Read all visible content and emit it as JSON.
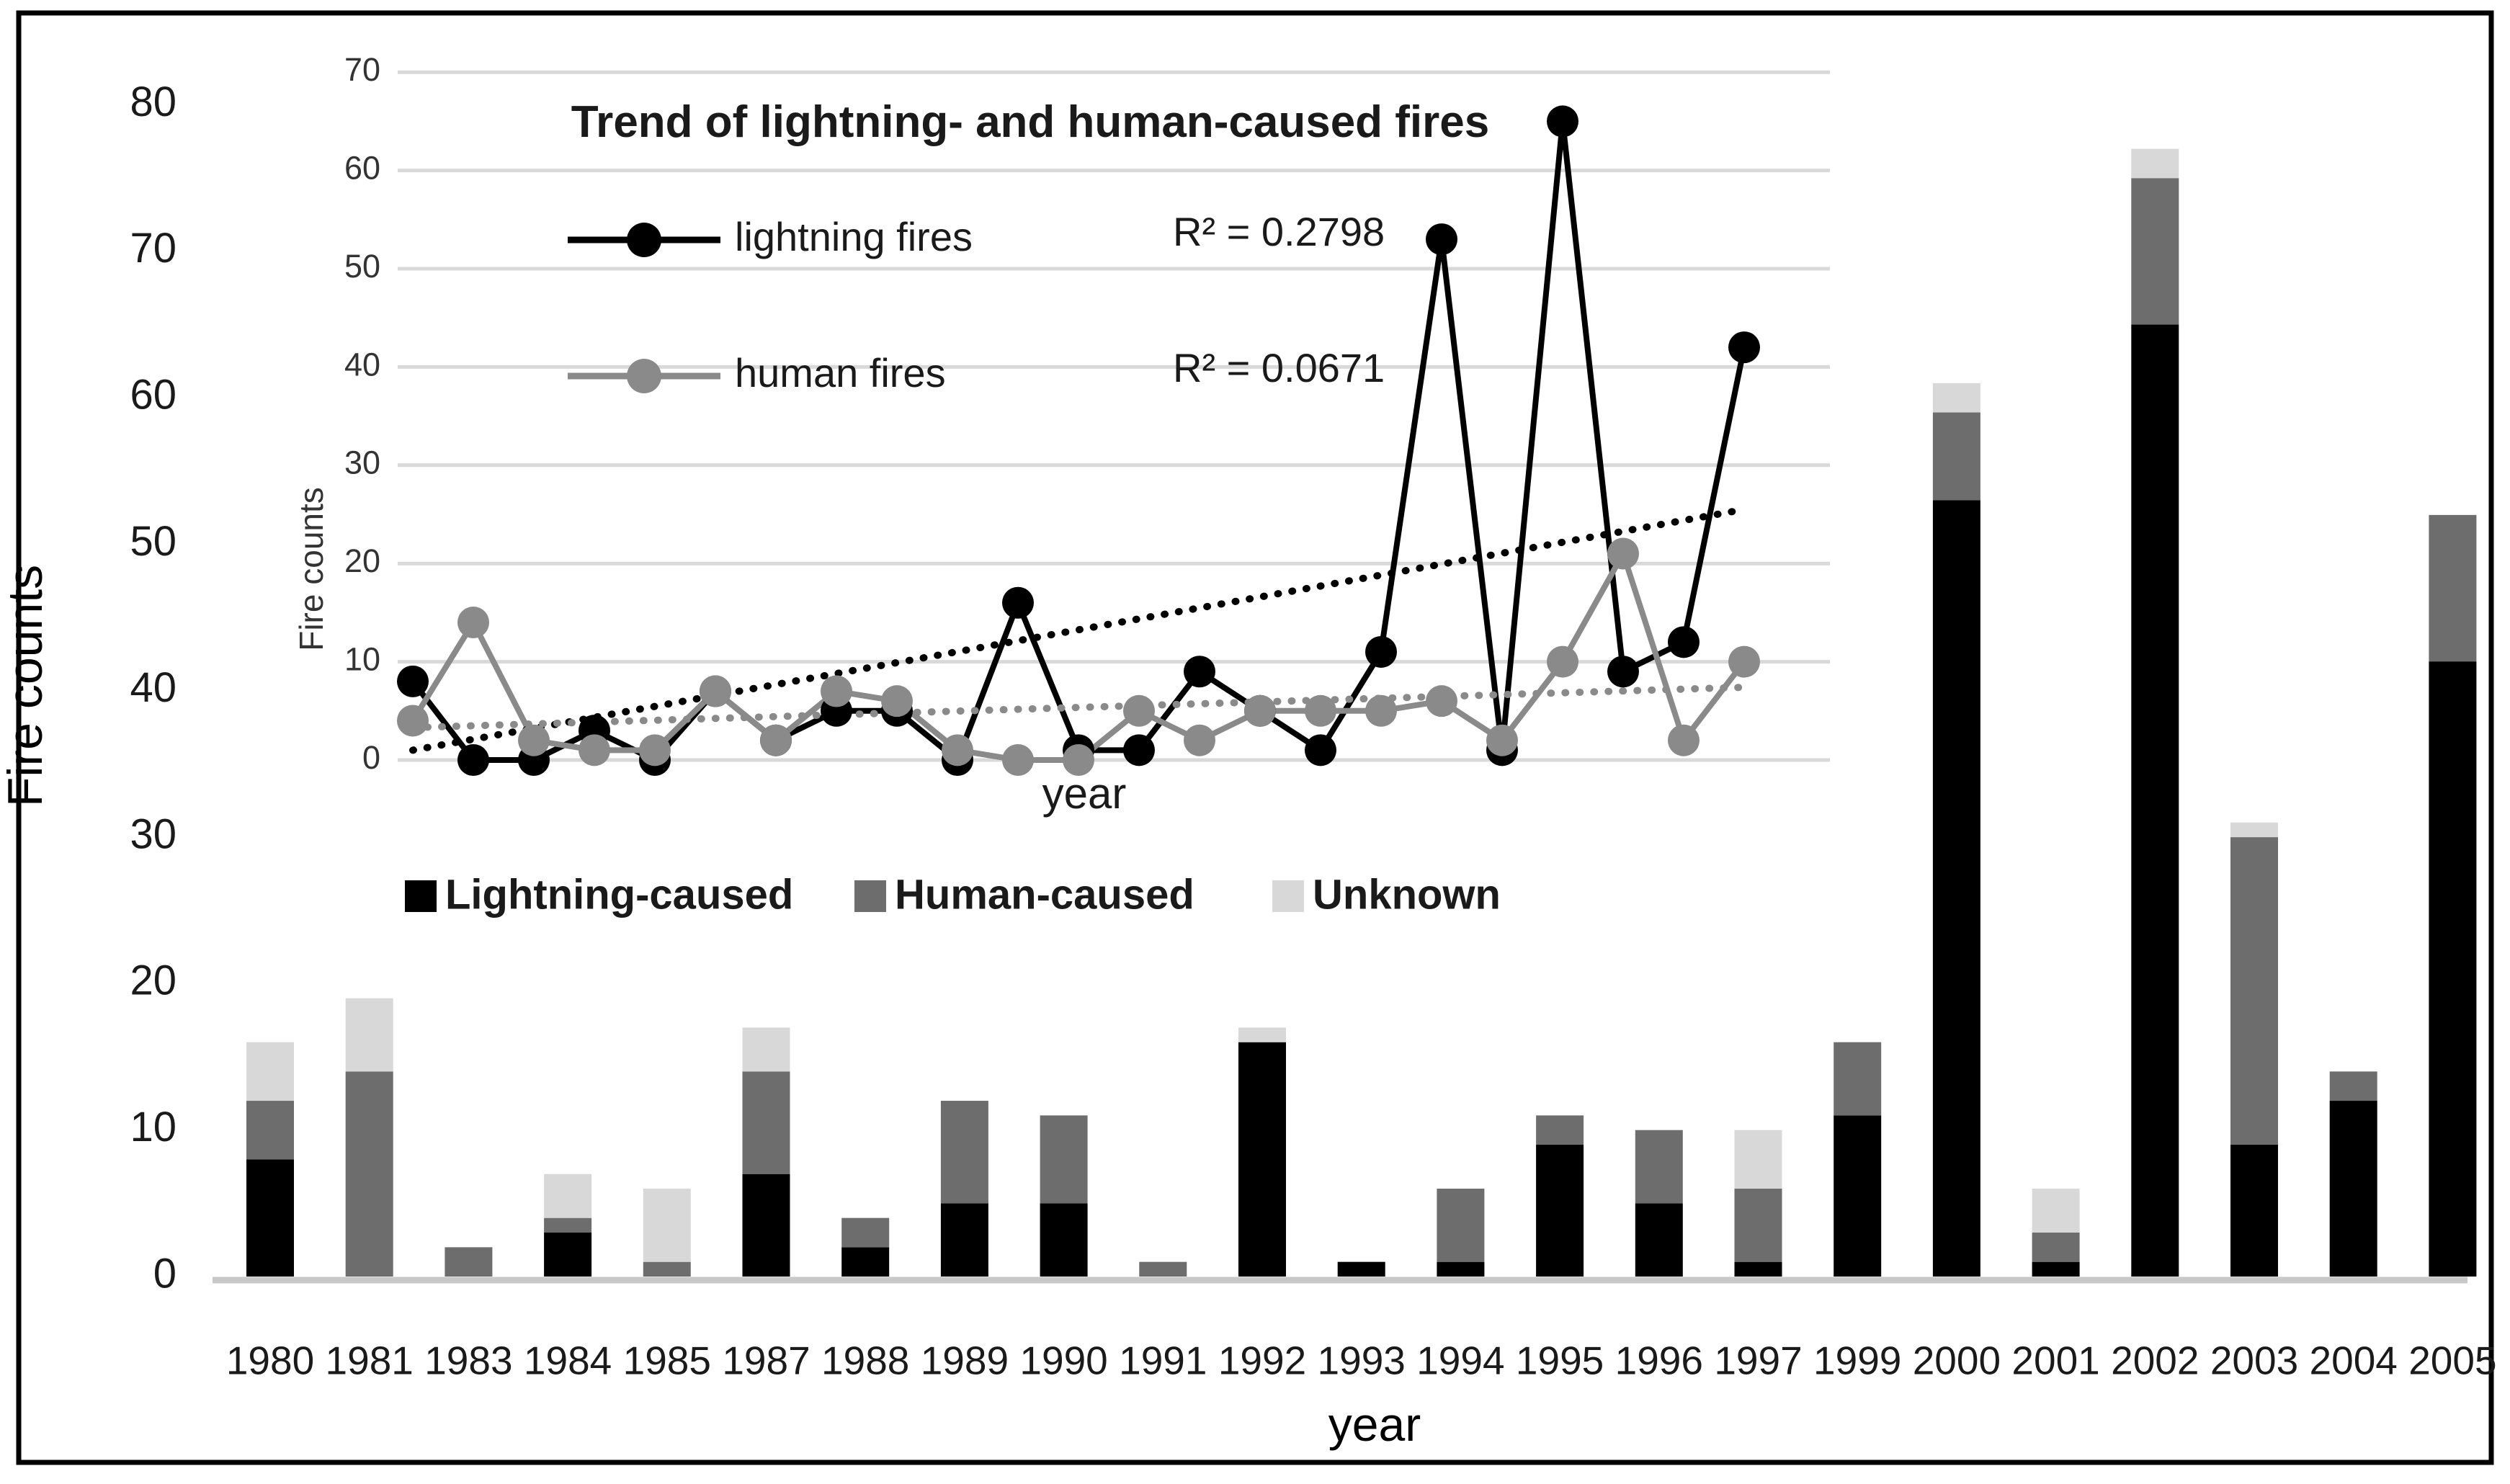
{
  "figure": {
    "border_color": "#000000",
    "background": "#ffffff"
  },
  "chart_data": {
    "type": "combo",
    "main": {
      "type": "stacked-bar",
      "categories": [
        "1980",
        "1981",
        "1983",
        "1984",
        "1985",
        "1987",
        "1988",
        "1989",
        "1990",
        "1991",
        "1992",
        "1993",
        "1994",
        "1995",
        "1996",
        "1997",
        "1999",
        "2000",
        "2001",
        "2002",
        "2003",
        "2004",
        "2005"
      ],
      "series": [
        {
          "name": "Lightning-caused",
          "color": "#000000",
          "values": [
            8,
            0,
            0,
            3,
            0,
            7,
            2,
            5,
            5,
            0,
            16,
            1,
            1,
            9,
            5,
            1,
            11,
            53,
            1,
            65,
            9,
            12,
            42
          ]
        },
        {
          "name": "Human-caused",
          "color": "#6d6d6d",
          "values": [
            4,
            14,
            2,
            1,
            1,
            7,
            2,
            7,
            6,
            1,
            0,
            0,
            5,
            2,
            5,
            5,
            5,
            6,
            2,
            10,
            21,
            2,
            10
          ]
        },
        {
          "name": "Unknown",
          "color": "#d8d8d8",
          "values": [
            4,
            5,
            0,
            3,
            5,
            3,
            0,
            0,
            0,
            0,
            1,
            0,
            0,
            0,
            0,
            4,
            0,
            2,
            3,
            2,
            1,
            0,
            0
          ]
        }
      ],
      "ylabel": "Fire counts",
      "xlabel": "year",
      "ylim": [
        0,
        80
      ],
      "yticks": [
        0,
        10,
        20,
        30,
        40,
        50,
        60,
        70,
        80
      ],
      "grid": false,
      "axis_line_color": "#c8c8c8",
      "tick_color": "#1a1a1a"
    },
    "inset": {
      "type": "line",
      "title": "Trend of lightning- and human-caused fires",
      "categories": [
        "1980",
        "1981",
        "1983",
        "1984",
        "1985",
        "1987",
        "1988",
        "1989",
        "1990",
        "1991",
        "1992",
        "1993",
        "1994",
        "1995",
        "1996",
        "1997",
        "1999",
        "2000",
        "2001",
        "2002",
        "2003",
        "2004",
        "2005"
      ],
      "series": [
        {
          "name": "lightning fires",
          "color": "#000000",
          "r2_label": "R² = 0.2798",
          "values": [
            8,
            0,
            0,
            3,
            0,
            7,
            2,
            5,
            5,
            0,
            16,
            1,
            1,
            9,
            5,
            1,
            11,
            53,
            1,
            65,
            9,
            12,
            42
          ],
          "trend": {
            "start": 1.0,
            "end": 25.5
          }
        },
        {
          "name": "human fires",
          "color": "#8a8a8a",
          "r2_label": "R² = 0.0671",
          "values": [
            4,
            14,
            2,
            1,
            1,
            7,
            2,
            7,
            6,
            1,
            0,
            0,
            5,
            2,
            5,
            5,
            5,
            6,
            2,
            10,
            21,
            2,
            10
          ],
          "trend": {
            "start": 3.3,
            "end": 7.4
          }
        }
      ],
      "ylabel": "Fire counts",
      "xlabel": "year",
      "ylim": [
        0,
        70
      ],
      "yticks": [
        0,
        10,
        20,
        30,
        40,
        50,
        60,
        70
      ],
      "grid": true,
      "gridline_color": "#d9d9d9",
      "tick_color": "#333333"
    }
  }
}
